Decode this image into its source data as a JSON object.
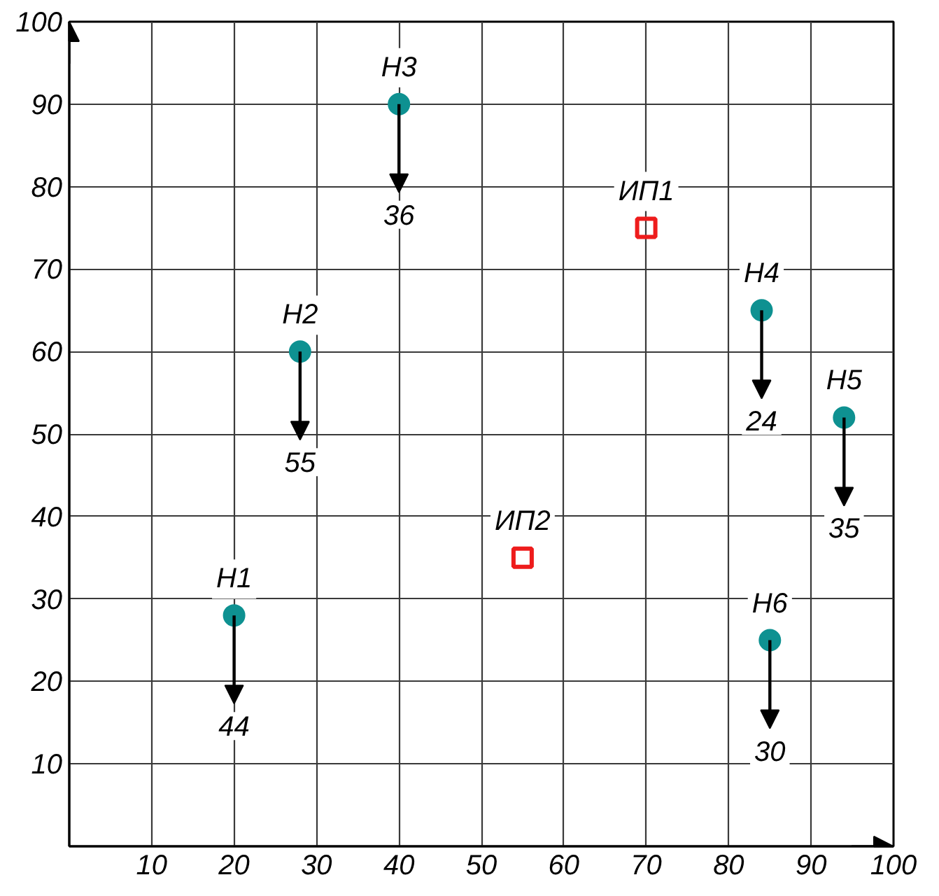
{
  "chart_data": {
    "type": "scatter",
    "xlim": [
      0,
      100
    ],
    "ylim": [
      0,
      100
    ],
    "xticks": [
      10,
      20,
      30,
      40,
      50,
      60,
      70,
      80,
      90,
      100
    ],
    "yticks": [
      10,
      20,
      30,
      40,
      50,
      60,
      70,
      80,
      90,
      100
    ],
    "grid": true,
    "series": [
      {
        "color": "#0e9191",
        "marker": "circle",
        "x": [
          20,
          28,
          40,
          84,
          94,
          85
        ],
        "values": [
          28,
          60,
          90,
          65,
          52,
          25
        ]
      },
      {
        "color": "#ee1c1c",
        "marker": "square",
        "x": [
          70,
          55
        ],
        "values": [
          75,
          35
        ]
      }
    ],
    "annotations": [
      {
        "text": "Н1",
        "x": 20,
        "y": 28
      },
      {
        "text": "44",
        "x": 20,
        "y": 28
      },
      {
        "text": "Н2",
        "x": 28,
        "y": 60
      },
      {
        "text": "55",
        "x": 28,
        "y": 60
      },
      {
        "text": "Н3",
        "x": 40,
        "y": 90
      },
      {
        "text": "36",
        "x": 40,
        "y": 90
      },
      {
        "text": "Н4",
        "x": 84,
        "y": 65
      },
      {
        "text": "24",
        "x": 84,
        "y": 65
      },
      {
        "text": "Н5",
        "x": 94,
        "y": 52
      },
      {
        "text": "35",
        "x": 94,
        "y": 52
      },
      {
        "text": "Н6",
        "x": 85,
        "y": 25
      },
      {
        "text": "30",
        "x": 85,
        "y": 25
      },
      {
        "text": "ИП1",
        "x": 70,
        "y": 75
      },
      {
        "text": "ИП2",
        "x": 55,
        "y": 35
      }
    ]
  }
}
